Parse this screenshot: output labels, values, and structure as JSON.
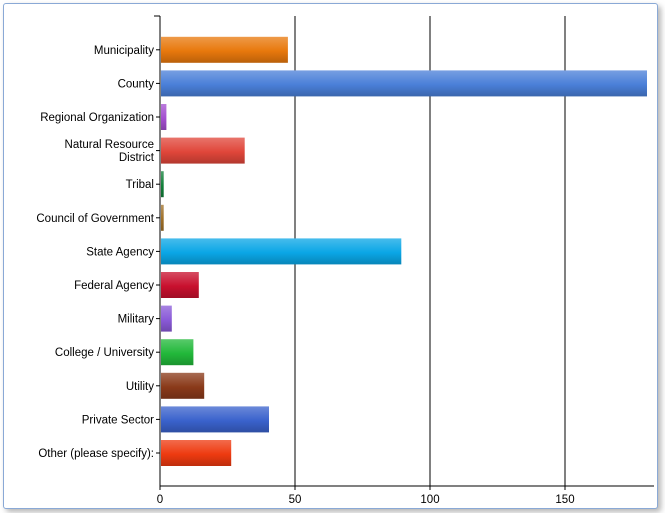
{
  "chart_data": {
    "type": "bar",
    "orientation": "horizontal",
    "categories": [
      "Municipality",
      "County",
      "Regional Organization",
      "Natural Resource District",
      "Tribal",
      "Council of Government",
      "State Agency",
      "Federal Agency",
      "Military",
      "College / University",
      "Utility",
      "Private Sector",
      "Other (please specify):"
    ],
    "category_lines": [
      [
        "Municipality"
      ],
      [
        "County"
      ],
      [
        "Regional Organization"
      ],
      [
        "Natural Resource",
        "District"
      ],
      [
        "Tribal"
      ],
      [
        "Council of Government"
      ],
      [
        "State Agency"
      ],
      [
        "Federal Agency"
      ],
      [
        "Military"
      ],
      [
        "College / University"
      ],
      [
        "Utility"
      ],
      [
        "Private Sector"
      ],
      [
        "Other (please specify):"
      ]
    ],
    "values": [
      47,
      180,
      2,
      31,
      1,
      1,
      89,
      14,
      4,
      12,
      16,
      40,
      26
    ],
    "colors": [
      "#e8780c",
      "#4a7fd8",
      "#a44fd0",
      "#e0463a",
      "#12803a",
      "#a07028",
      "#0aa6e6",
      "#c8102e",
      "#8a5ad8",
      "#22b83a",
      "#8a3a1a",
      "#3a62cc",
      "#ee3a10"
    ],
    "xlim": [
      0,
      180
    ],
    "xticks": [
      0,
      50,
      100,
      150
    ],
    "grid": true,
    "title": "",
    "xlabel": "",
    "ylabel": ""
  }
}
